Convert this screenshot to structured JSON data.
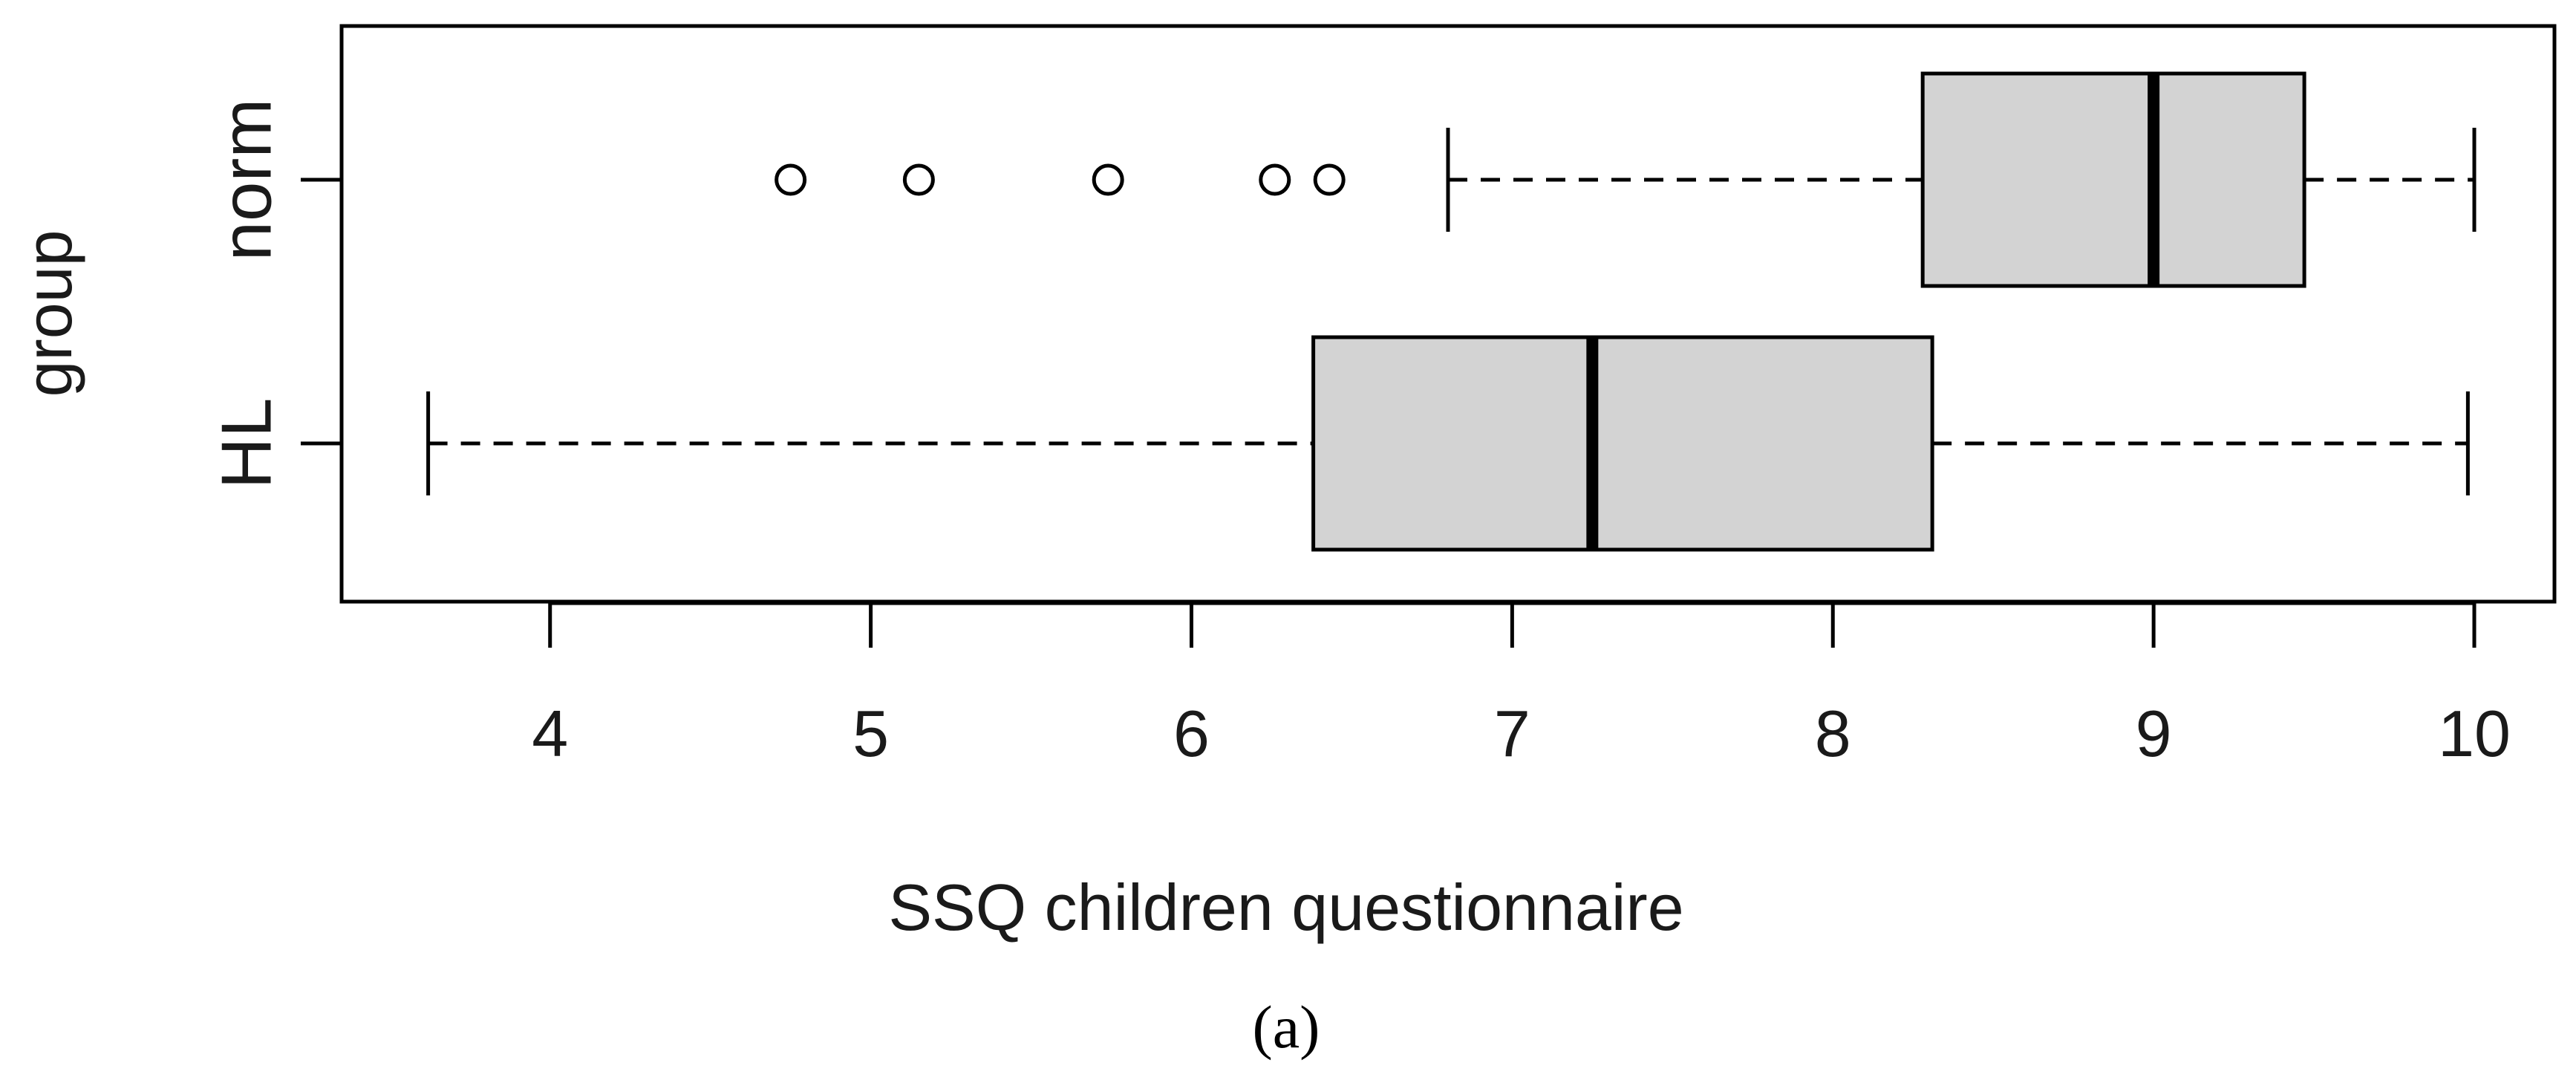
{
  "chart_data": {
    "type": "boxplot",
    "orientation": "horizontal",
    "xlabel": "SSQ children questionnaire",
    "ylabel": "group",
    "xlim": [
      3.35,
      10.25
    ],
    "xticks": [
      4,
      5,
      6,
      7,
      8,
      9,
      10
    ],
    "xtick_labels": [
      "4",
      "5",
      "6",
      "7",
      "8",
      "9",
      "10"
    ],
    "grid": false,
    "legend": "none",
    "box_fill": "#d3d3d3",
    "stroke_color": "#000000",
    "categories": [
      "HL",
      "norm"
    ],
    "boxes": [
      {
        "name": "HL",
        "whisker_low": 3.62,
        "q1": 6.38,
        "median": 7.25,
        "q3": 8.31,
        "whisker_high": 9.98,
        "outliers": []
      },
      {
        "name": "norm",
        "whisker_low": 6.8,
        "q1": 8.28,
        "median": 9.0,
        "q3": 9.47,
        "whisker_high": 10.0,
        "outliers": [
          4.75,
          5.15,
          5.74,
          6.26,
          6.43
        ]
      }
    ]
  },
  "caption": "(a)"
}
